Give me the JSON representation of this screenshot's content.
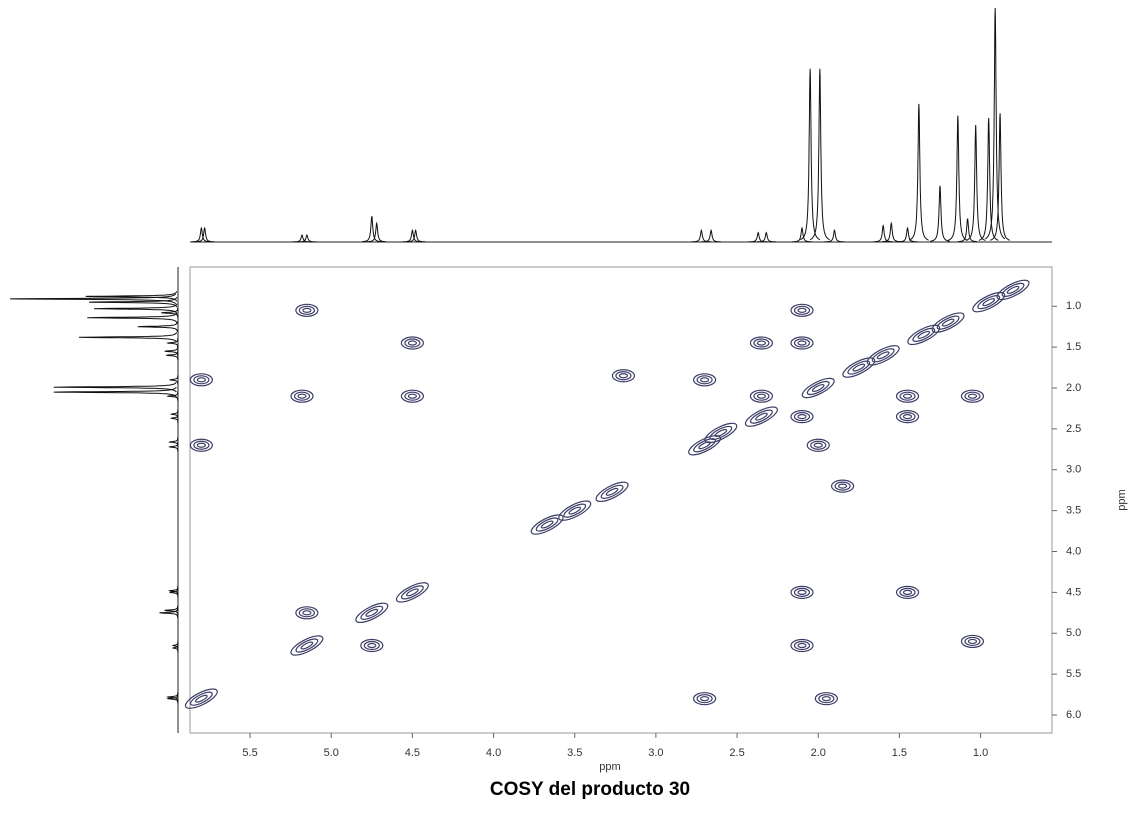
{
  "chart_data": {
    "type": "contour",
    "caption": "COSY del producto 30",
    "x_label": "ppm",
    "y_label": "ppm",
    "color": "#3c3c66",
    "xlim": [
      5.87,
      0.56
    ],
    "ylim": [
      0.52,
      6.22
    ],
    "xticks": [
      5.5,
      {
        "value": 5.0,
        "label": "5.0"
      },
      4.5,
      {
        "value": 4.0,
        "label": "4.0"
      },
      3.5,
      {
        "value": 3.0,
        "label": "3.0"
      },
      2.5,
      {
        "value": 2.0,
        "label": "2.0"
      },
      1.5,
      {
        "value": 1.0,
        "label": "1.0"
      }
    ],
    "yticks": [
      {
        "value": 1.0,
        "label": "1.0"
      },
      1.5,
      {
        "value": 2.0,
        "label": "2.0"
      },
      2.5,
      {
        "value": 3.0,
        "label": "3.0"
      },
      3.5,
      {
        "value": 4.0,
        "label": "4.0"
      },
      4.5,
      {
        "value": 5.0,
        "label": "5.0"
      },
      5.5,
      {
        "value": 6.0,
        "label": "6.0"
      }
    ],
    "x": [
      5.8,
      5.8,
      5.8,
      5.15,
      5.18,
      5.15,
      5.15,
      4.75,
      4.75,
      4.5,
      4.5,
      4.5,
      3.2,
      3.27,
      3.5,
      3.67,
      2.7,
      2.7,
      2.7,
      2.35,
      2.35,
      2.1,
      2.1,
      2.1,
      2.1,
      2.1,
      2.0,
      1.95,
      1.85,
      1.45,
      1.45,
      1.45,
      1.05,
      1.05,
      0.95,
      1.2,
      1.35,
      1.6,
      1.75,
      2.0,
      2.35,
      2.6,
      0.8
    ],
    "values": [
      1.9,
      5.8,
      2.7,
      1.05,
      2.1,
      4.75,
      5.15,
      4.75,
      5.15,
      1.45,
      2.1,
      4.5,
      1.85,
      3.27,
      3.5,
      3.67,
      1.9,
      2.7,
      5.8,
      1.45,
      2.1,
      1.05,
      1.45,
      2.35,
      4.5,
      5.15,
      2.7,
      5.8,
      3.2,
      4.5,
      2.35,
      2.1,
      2.1,
      5.1,
      0.95,
      1.2,
      1.35,
      1.6,
      1.75,
      2.0,
      2.35,
      2.55,
      0.8
    ],
    "projection": {
      "x": [
        5.8,
        5.78,
        5.15,
        5.18,
        4.75,
        4.72,
        4.5,
        4.48,
        2.72,
        2.66,
        2.37,
        2.32,
        2.1,
        2.05,
        1.99,
        1.9,
        1.6,
        1.55,
        1.45,
        1.38,
        1.25,
        1.14,
        1.08,
        1.03,
        0.95,
        0.91,
        0.88
      ],
      "values": [
        6,
        6,
        3,
        3,
        11,
        8,
        5,
        5,
        5,
        5,
        4,
        4,
        6,
        74,
        74,
        5,
        7,
        8,
        6,
        59,
        24,
        54,
        10,
        50,
        53,
        100,
        55
      ],
      "ylim": [
        0,
        100
      ]
    }
  }
}
